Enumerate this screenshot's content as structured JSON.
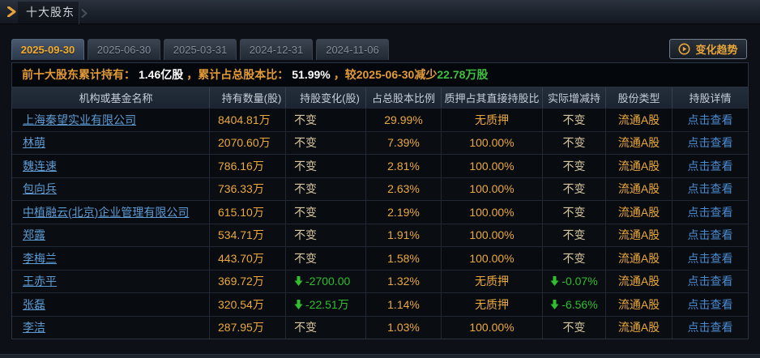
{
  "header": {
    "title": "十大股东"
  },
  "tabs": [
    {
      "label": "2025-09-30",
      "active": true
    },
    {
      "label": "2025-06-30",
      "active": false
    },
    {
      "label": "2025-03-31",
      "active": false
    },
    {
      "label": "2024-12-31",
      "active": false
    },
    {
      "label": "2024-11-06",
      "active": false
    }
  ],
  "trend_button": {
    "label": "变化趋势"
  },
  "summary": {
    "segments": [
      {
        "text": "前十大股东累计持有：",
        "style": "label"
      },
      {
        "text": "1.46亿股",
        "style": "number"
      },
      {
        "text": "，",
        "style": "label"
      },
      {
        "text": "累计占总股本比：",
        "style": "label"
      },
      {
        "text": "51.99%",
        "style": "number"
      },
      {
        "text": "，",
        "style": "label"
      },
      {
        "text": "较2025-06-30减少",
        "style": "label"
      },
      {
        "text": "22.78万股",
        "style": "green"
      }
    ]
  },
  "table": {
    "columns": [
      "机构或基金名称",
      "持有数量(股)",
      "持股变化(股)",
      "占总股本比例",
      "质押占其直接持股比",
      "实际增减持",
      "股份类型",
      "持股详情"
    ],
    "detail_label": "点击查看",
    "rows": [
      {
        "name": "上海秦望实业有限公司",
        "qty": "8404.81万",
        "change": "不变",
        "change_down": false,
        "ratio": "29.99%",
        "pledge": "无质押",
        "delta": "不变",
        "delta_down": false,
        "type": "流通A股"
      },
      {
        "name": "林萌",
        "qty": "2070.60万",
        "change": "不变",
        "change_down": false,
        "ratio": "7.39%",
        "pledge": "100.00%",
        "delta": "不变",
        "delta_down": false,
        "type": "流通A股"
      },
      {
        "name": "魏连速",
        "qty": "786.16万",
        "change": "不变",
        "change_down": false,
        "ratio": "2.81%",
        "pledge": "100.00%",
        "delta": "不变",
        "delta_down": false,
        "type": "流通A股"
      },
      {
        "name": "包向兵",
        "qty": "736.33万",
        "change": "不变",
        "change_down": false,
        "ratio": "2.63%",
        "pledge": "100.00%",
        "delta": "不变",
        "delta_down": false,
        "type": "流通A股"
      },
      {
        "name": "中植融云(北京)企业管理有限公司",
        "qty": "615.10万",
        "change": "不变",
        "change_down": false,
        "ratio": "2.19%",
        "pledge": "100.00%",
        "delta": "不变",
        "delta_down": false,
        "type": "流通A股"
      },
      {
        "name": "郑露",
        "qty": "534.71万",
        "change": "不变",
        "change_down": false,
        "ratio": "1.91%",
        "pledge": "100.00%",
        "delta": "不变",
        "delta_down": false,
        "type": "流通A股"
      },
      {
        "name": "李梅兰",
        "qty": "443.70万",
        "change": "不变",
        "change_down": false,
        "ratio": "1.58%",
        "pledge": "100.00%",
        "delta": "不变",
        "delta_down": false,
        "type": "流通A股"
      },
      {
        "name": "王赤平",
        "qty": "369.72万",
        "change": "-2700.00",
        "change_down": true,
        "ratio": "1.32%",
        "pledge": "无质押",
        "delta": "-0.07%",
        "delta_down": true,
        "type": "流通A股"
      },
      {
        "name": "张磊",
        "qty": "320.54万",
        "change": "-22.51万",
        "change_down": true,
        "ratio": "1.14%",
        "pledge": "无质押",
        "delta": "-6.56%",
        "delta_down": true,
        "type": "流通A股"
      },
      {
        "name": "李洁",
        "qty": "287.95万",
        "change": "不变",
        "change_down": false,
        "ratio": "1.03%",
        "pledge": "100.00%",
        "delta": "不变",
        "delta_down": false,
        "type": "流通A股"
      }
    ]
  },
  "colors": {
    "accent_gold": "#e9a63a",
    "value_orange": "#eba93d",
    "unchanged_tan": "#d7c69e",
    "decrease_green": "#2fbf2f",
    "name_link_blue": "#5d9bd3",
    "detail_link_blue": "#4a8bd0",
    "header_text": "#c6ced8"
  }
}
